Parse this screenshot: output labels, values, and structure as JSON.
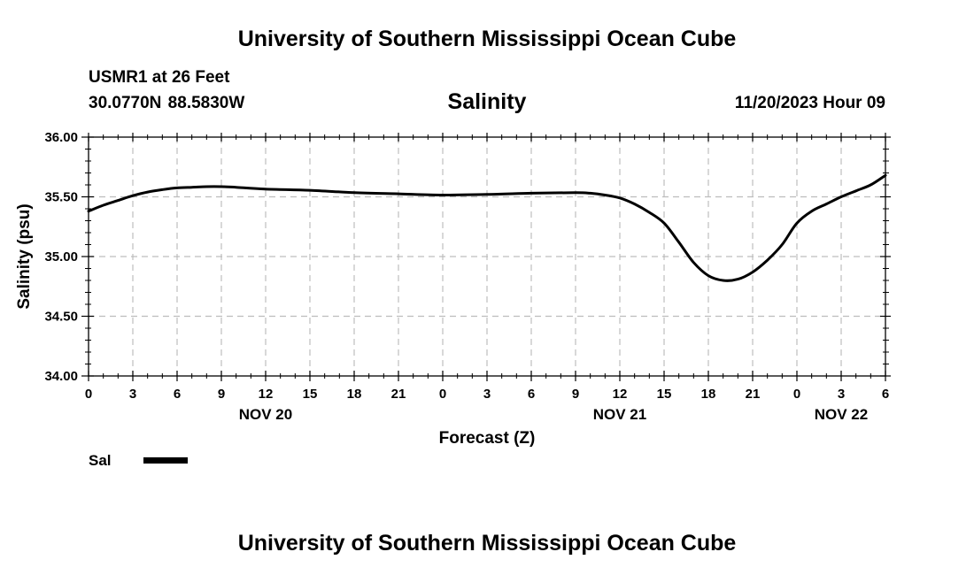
{
  "page_title_top": "University of Southern Mississippi Ocean Cube",
  "page_title_bottom": "University of Southern Mississippi Ocean Cube",
  "station": {
    "name": "USMR1 at 26 Feet",
    "coords": "30.0770N  88.5830W",
    "timestamp": "11/20/2023 Hour 09"
  },
  "chart_data": {
    "type": "line",
    "title": "Salinity",
    "xlabel": "Forecast (Z)",
    "ylabel": "Salinity (psu)",
    "ylim": [
      34.0,
      36.0
    ],
    "xlim": [
      0,
      54
    ],
    "grid": true,
    "y_ticks": [
      "34.00",
      "34.50",
      "35.00",
      "35.50",
      "36.00"
    ],
    "x_ticks": [
      {
        "hour": 0,
        "label": "0"
      },
      {
        "hour": 3,
        "label": "3"
      },
      {
        "hour": 6,
        "label": "6"
      },
      {
        "hour": 9,
        "label": "9"
      },
      {
        "hour": 12,
        "label": "12"
      },
      {
        "hour": 15,
        "label": "15"
      },
      {
        "hour": 18,
        "label": "18"
      },
      {
        "hour": 21,
        "label": "21"
      },
      {
        "hour": 24,
        "label": "0"
      },
      {
        "hour": 27,
        "label": "3"
      },
      {
        "hour": 30,
        "label": "6"
      },
      {
        "hour": 33,
        "label": "9"
      },
      {
        "hour": 36,
        "label": "12"
      },
      {
        "hour": 39,
        "label": "15"
      },
      {
        "hour": 42,
        "label": "18"
      },
      {
        "hour": 45,
        "label": "21"
      },
      {
        "hour": 48,
        "label": "0"
      },
      {
        "hour": 51,
        "label": "3"
      },
      {
        "hour": 54,
        "label": "6"
      }
    ],
    "date_labels": [
      {
        "hour": 12,
        "label": "NOV 20"
      },
      {
        "hour": 36,
        "label": "NOV 21"
      },
      {
        "hour": 51,
        "label": "NOV 22"
      }
    ],
    "legend_position": "bottom-left",
    "series": [
      {
        "name": "Sal",
        "color": "#000000",
        "x": [
          0,
          1,
          2,
          3,
          4,
          5,
          6,
          7,
          8,
          9,
          10,
          12,
          15,
          18,
          21,
          24,
          27,
          30,
          33,
          34,
          35,
          36,
          37,
          38,
          39,
          40,
          41,
          42,
          43,
          44,
          45,
          46,
          47,
          48,
          49,
          50,
          51,
          52,
          53,
          54
        ],
        "values": [
          35.38,
          35.43,
          35.47,
          35.51,
          35.54,
          35.56,
          35.575,
          35.58,
          35.585,
          35.585,
          35.58,
          35.565,
          35.555,
          35.535,
          35.525,
          35.515,
          35.52,
          35.53,
          35.535,
          35.53,
          35.515,
          35.49,
          35.44,
          35.37,
          35.28,
          35.12,
          34.95,
          34.84,
          34.8,
          34.81,
          34.87,
          34.97,
          35.1,
          35.28,
          35.38,
          35.44,
          35.5,
          35.55,
          35.6,
          35.68
        ]
      }
    ]
  }
}
